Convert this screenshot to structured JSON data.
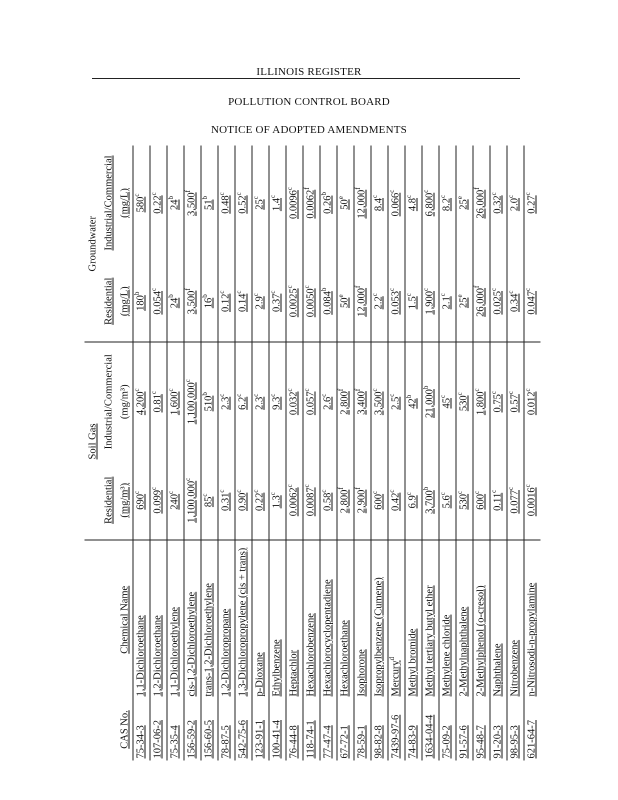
{
  "header": {
    "register": "ILLINOIS REGISTER",
    "board": "POLLUTION CONTROL BOARD",
    "notice": "NOTICE OF ADOPTED AMENDMENTS"
  },
  "table": {
    "columns": {
      "cas": "CAS No.",
      "name": "Chemical Name",
      "soil_gas": "Soil Gas",
      "groundwater": "Groundwater",
      "soil_res": "Residential",
      "soil_res_unit": "(mg/m³)",
      "soil_ind": "Industrial/Commercial",
      "soil_ind_unit": "(mg/m³)",
      "gw_res": "Residential",
      "gw_res_unit": "(mg/L)",
      "gw_ind": "Industrial/Commercial",
      "gw_ind_unit": "(mg/L)"
    },
    "rows": [
      {
        "cas": "75-34-3",
        "name": "1,1-Dichloroethane",
        "v": [
          [
            "690",
            "c"
          ],
          [
            "4,200",
            "c"
          ],
          [
            "180",
            "b"
          ],
          [
            "580",
            "c"
          ]
        ]
      },
      {
        "cas": "107-06-2",
        "name": "1,2-Dichloroethane",
        "v": [
          [
            "0.099",
            "c"
          ],
          [
            "0.81",
            "c"
          ],
          [
            "0.054",
            "c"
          ],
          [
            "0.22",
            "c"
          ]
        ]
      },
      {
        "cas": "75-35-4",
        "name": "1,1-Dichloroethylene",
        "v": [
          [
            "240",
            "c"
          ],
          [
            "1,600",
            "c"
          ],
          [
            "24",
            "b"
          ],
          [
            "24",
            "b"
          ]
        ]
      },
      {
        "cas": "156-59-2",
        "name": "cis-1,2-Dichloroethylene",
        "v": [
          [
            "1,100,000",
            "c"
          ],
          [
            "1,100,000",
            "c"
          ],
          [
            "3,500",
            "f"
          ],
          [
            "3,500",
            "f"
          ]
        ]
      },
      {
        "cas": "156-60-5",
        "name": "trans-1,2-Dichloroethylene",
        "v": [
          [
            "85",
            "c"
          ],
          [
            "510",
            "b"
          ],
          [
            "16",
            "b"
          ],
          [
            "51",
            "b"
          ]
        ]
      },
      {
        "cas": "78-87-5",
        "name": "1,2-Dichloropropane",
        "v": [
          [
            "0.31",
            "c"
          ],
          [
            "2.3",
            "c"
          ],
          [
            "0.12",
            "c"
          ],
          [
            "0.48",
            "c"
          ]
        ]
      },
      {
        "cas": "542-75-6",
        "name": "1,3-Dichloropropylene (cis + trans)",
        "v": [
          [
            "0.90",
            "c"
          ],
          [
            "6.2",
            "c"
          ],
          [
            "0.14",
            "c"
          ],
          [
            "0.52",
            "c"
          ]
        ]
      },
      {
        "cas": "123-91-1",
        "name": "p-Dioxane",
        "v": [
          [
            "0.22",
            "c"
          ],
          [
            "2.3",
            "c"
          ],
          [
            "2.9",
            "c"
          ],
          [
            "25",
            "c"
          ]
        ]
      },
      {
        "cas": "100-41-4",
        "name": "Ethylbenzene",
        "v": [
          [
            "1.3",
            "c"
          ],
          [
            "9.3",
            "c"
          ],
          [
            "0.37",
            "c"
          ],
          [
            "1.4",
            "c"
          ]
        ]
      },
      {
        "cas": "76-44-8",
        "name": "Heptachlor",
        "v": [
          [
            "0.0062",
            "c"
          ],
          [
            "0.032",
            "c"
          ],
          [
            "0.0025",
            "c"
          ],
          [
            "0.0096",
            "c"
          ]
        ]
      },
      {
        "cas": "118-74-1",
        "name": "Hexachlorobenzene",
        "v": [
          [
            "0.0087",
            "c"
          ],
          [
            "0.057",
            "c"
          ],
          [
            "0.0050",
            "c"
          ],
          [
            "0.0062",
            "f"
          ]
        ]
      },
      {
        "cas": "77-47-4",
        "name": "Hexachlorocyclopentadiene",
        "v": [
          [
            "0.58",
            "c"
          ],
          [
            "2.6",
            "c"
          ],
          [
            "0.084",
            "b"
          ],
          [
            "0.26",
            "b"
          ]
        ]
      },
      {
        "cas": "67-72-1",
        "name": "Hexachloroethane",
        "v": [
          [
            "2,800",
            "f"
          ],
          [
            "2,800",
            "f"
          ],
          [
            "50",
            "e"
          ],
          [
            "50",
            "e"
          ]
        ]
      },
      {
        "cas": "78-59-1",
        "name": "Isophorone",
        "v": [
          [
            "2,900",
            "f"
          ],
          [
            "3,400",
            "f"
          ],
          [
            "12,000",
            "f"
          ],
          [
            "12,000",
            "f"
          ]
        ]
      },
      {
        "cas": "98-82-8",
        "name": "Isopropylbenzene (Cumene)",
        "v": [
          [
            "600",
            "c"
          ],
          [
            "3,500",
            "c"
          ],
          [
            "2.2",
            "c"
          ],
          [
            "8.4",
            "c"
          ]
        ]
      },
      {
        "cas": "7439-97-6",
        "name": "Mercury",
        "name_sup": "d",
        "v": [
          [
            "0.42",
            "c"
          ],
          [
            "2.5",
            "c"
          ],
          [
            "0.053",
            "c"
          ],
          [
            "0.066",
            "c"
          ]
        ]
      },
      {
        "cas": "74-83-9",
        "name": "Methyl bromide",
        "v": [
          [
            "6.9",
            "c"
          ],
          [
            "42",
            "b"
          ],
          [
            "1.5",
            "c"
          ],
          [
            "4.8",
            "c"
          ]
        ]
      },
      {
        "cas": "1634-04-4",
        "name": "Methyl tertiary butyl ether",
        "v": [
          [
            "3,700",
            "b"
          ],
          [
            "21,000",
            "b"
          ],
          [
            "1,900",
            "c"
          ],
          [
            "6,800",
            "c"
          ]
        ]
      },
      {
        "cas": "75-09-2",
        "name": "Methylene chloride",
        "v": [
          [
            "5.6",
            "c"
          ],
          [
            "45",
            "c"
          ],
          [
            "2.1",
            "c"
          ],
          [
            "8.2",
            "c"
          ]
        ]
      },
      {
        "cas": "91-57-6",
        "name": "2-Methylnaphthalene",
        "v": [
          [
            "530",
            "c"
          ],
          [
            "530",
            "c"
          ],
          [
            "25",
            "e"
          ],
          [
            "25",
            "e"
          ]
        ]
      },
      {
        "cas": "95-48-7",
        "name": "2-Methylphenol (o-cresol)",
        "v": [
          [
            "600",
            "c"
          ],
          [
            "1,800",
            "c"
          ],
          [
            "26,000",
            "f"
          ],
          [
            "26,000",
            "f"
          ]
        ]
      },
      {
        "cas": "91-20-3",
        "name": "Naphthalene",
        "v": [
          [
            "0.11",
            "c"
          ],
          [
            "0.75",
            "c"
          ],
          [
            "0.025",
            "c"
          ],
          [
            "0.32",
            "c"
          ]
        ]
      },
      {
        "cas": "98-95-3",
        "name": "Nitrobenzene",
        "v": [
          [
            "0.077",
            "c"
          ],
          [
            "0.57",
            "c"
          ],
          [
            "0.34",
            "c"
          ],
          [
            "2.0",
            "c"
          ]
        ]
      },
      {
        "cas": "621-64-7",
        "name": "n-Nitrosodi-n-propylamine",
        "v": [
          [
            "0.0016",
            "c"
          ],
          [
            "0.012",
            "c"
          ],
          [
            "0.047",
            "c"
          ],
          [
            "0.27",
            "c"
          ]
        ]
      }
    ]
  }
}
